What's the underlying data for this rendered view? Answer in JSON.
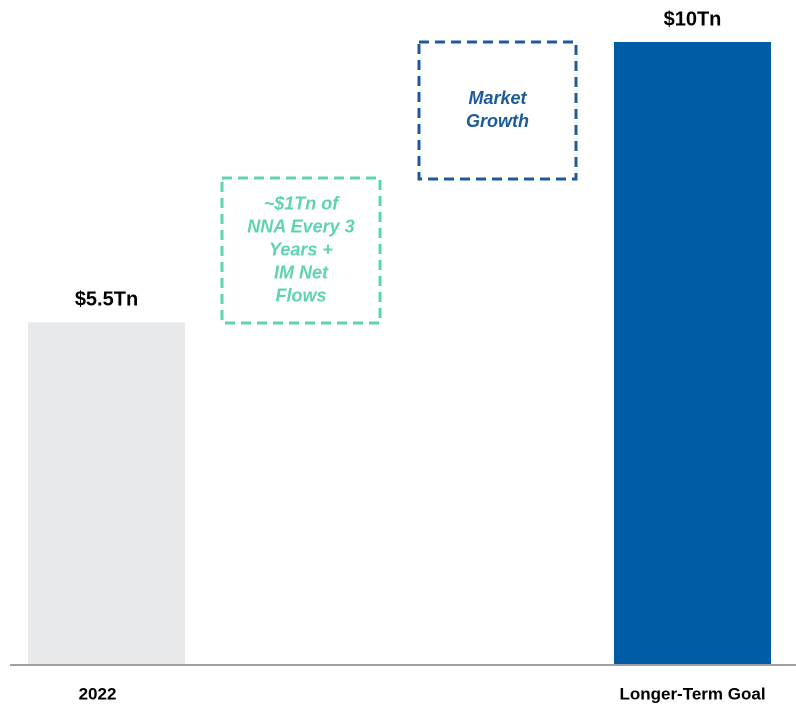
{
  "chart_data": {
    "type": "bar",
    "categories": [
      "2022",
      "Longer-Term Goal"
    ],
    "values": [
      5.5,
      10
    ],
    "value_labels": [
      "$5.5Tn",
      "$10Tn"
    ],
    "colors": [
      "#e8e9ea",
      "#005ca5"
    ],
    "annotations": [
      {
        "lines": [
          "~$1Tn of",
          "NNA Every 3",
          "Years +",
          "IM Net",
          "Flows"
        ],
        "color": "#5ed3b2"
      },
      {
        "lines": [
          "Market",
          "Growth"
        ],
        "color": "#1d5a98"
      }
    ]
  }
}
